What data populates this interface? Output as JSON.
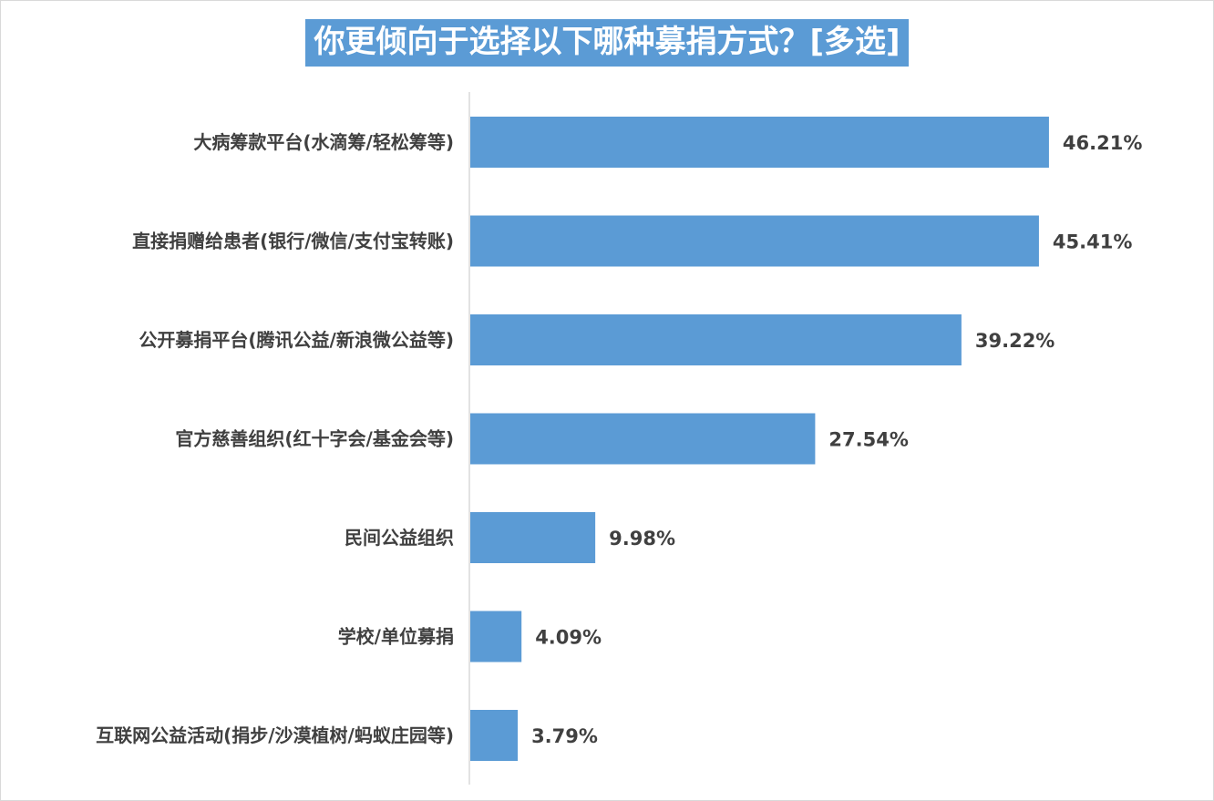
{
  "chart_data": {
    "type": "bar",
    "orientation": "horizontal",
    "title": "你更倾向于选择以下哪种募捐方式？[多选]",
    "categories": [
      "大病筹款平台(水滴筹/轻松筹等)",
      "直接捐赠给患者(银行/微信/支付宝转账)",
      "公开募捐平台(腾讯公益/新浪微公益等)",
      "官方慈善组织(红十字会/基金会等)",
      "民间公益组织",
      "学校/单位募捐",
      "互联网公益活动(捐步/沙漠植树/蚂蚁庄园等)"
    ],
    "values": [
      46.21,
      45.41,
      39.22,
      27.54,
      9.98,
      4.09,
      3.79
    ],
    "value_labels": [
      "46.21%",
      "45.41%",
      "39.22%",
      "27.54%",
      "9.98%",
      "4.09%",
      "3.79%"
    ],
    "xlim": [
      0,
      50
    ],
    "grid": false,
    "legend": "none",
    "colors": {
      "bar": "#5b9bd5",
      "title_bg": "#5b9bd5",
      "text": "#404040",
      "axis": "#d9d9d9"
    }
  }
}
